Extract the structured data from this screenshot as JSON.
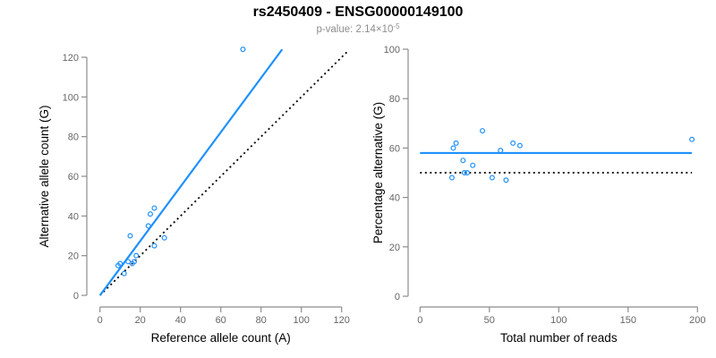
{
  "header": {
    "title": "rs2450409 - ENSG00000149100",
    "subtitle_prefix": "p-value: 2.14×10",
    "subtitle_exponent": "-5"
  },
  "colors": {
    "accent_blue": "#1E90FF",
    "dotted_black": "#000000",
    "axis_line_gray": "#8c8c8c",
    "tick_label_gray": "#666666",
    "axis_title_black": "#000000",
    "subtitle_gray": "#8e8e8e"
  },
  "chart_data": [
    {
      "type": "scatter",
      "panel": "left",
      "xlabel": "Reference allele count (A)",
      "ylabel": "Alternative allele count (G)",
      "xticks": [
        0,
        20,
        40,
        60,
        80,
        100,
        120
      ],
      "yticks": [
        0,
        20,
        40,
        60,
        80,
        100,
        120
      ],
      "xlim": [
        0,
        120
      ],
      "ylim": [
        0,
        124
      ],
      "grid": false,
      "legend": "none",
      "points": [
        [
          71,
          124
        ],
        [
          27,
          44
        ],
        [
          25,
          41
        ],
        [
          24,
          35
        ],
        [
          15,
          30
        ],
        [
          32,
          29
        ],
        [
          27,
          25
        ],
        [
          18,
          20
        ],
        [
          14,
          17
        ],
        [
          17,
          17
        ],
        [
          16,
          16
        ],
        [
          10,
          16
        ],
        [
          9,
          15
        ],
        [
          12,
          11
        ]
      ],
      "lines": [
        {
          "name": "identity-line",
          "style": "dotted",
          "color": "#000000",
          "from": [
            0,
            0
          ],
          "to": [
            123,
            123
          ]
        },
        {
          "name": "regression-line",
          "style": "solid",
          "color": "#1E90FF",
          "from": [
            0,
            0
          ],
          "to": [
            90.5,
            124
          ]
        }
      ]
    },
    {
      "type": "scatter",
      "panel": "right",
      "xlabel": "Total number of reads",
      "ylabel": "Percentage alternative (G)",
      "xticks": [
        0,
        50,
        100,
        150,
        200
      ],
      "yticks": [
        0,
        20,
        40,
        60,
        80,
        100
      ],
      "xlim": [
        0,
        200
      ],
      "ylim": [
        0,
        100
      ],
      "grid": false,
      "legend": "none",
      "points": [
        [
          196,
          63.5
        ],
        [
          72,
          61
        ],
        [
          67,
          62
        ],
        [
          58,
          59
        ],
        [
          45,
          67
        ],
        [
          62,
          47
        ],
        [
          52,
          48
        ],
        [
          38,
          53
        ],
        [
          31,
          55
        ],
        [
          34,
          50
        ],
        [
          32,
          50
        ],
        [
          26,
          62
        ],
        [
          24,
          60
        ],
        [
          23,
          48
        ]
      ],
      "lines": [
        {
          "name": "null-line",
          "style": "dotted",
          "color": "#000000",
          "from": [
            0,
            50
          ],
          "to": [
            196,
            50
          ]
        },
        {
          "name": "fit-line",
          "style": "solid",
          "color": "#1E90FF",
          "from": [
            0,
            58
          ],
          "to": [
            196,
            58
          ]
        }
      ]
    }
  ]
}
